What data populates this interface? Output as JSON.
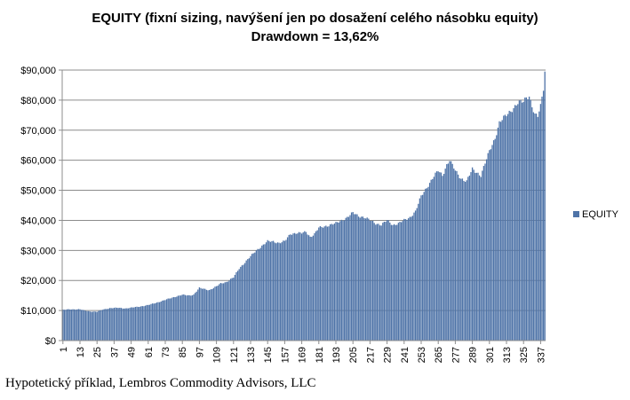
{
  "chart_data": {
    "type": "bar",
    "title": "EQUITY (fixní sizing, navýšení jen po dosažení celého násobku equity)",
    "subtitle": "Drawdown = 13,62%",
    "xlabel": "",
    "ylabel": "",
    "ylim": [
      0,
      90000
    ],
    "yticks": [
      "$0",
      "$10,000",
      "$20,000",
      "$30,000",
      "$40,000",
      "$50,000",
      "$60,000",
      "$70,000",
      "$80,000",
      "$90,000"
    ],
    "ytick_values": [
      0,
      10000,
      20000,
      30000,
      40000,
      50000,
      60000,
      70000,
      80000,
      90000
    ],
    "xticks": [
      "1",
      "13",
      "25",
      "37",
      "49",
      "61",
      "73",
      "85",
      "97",
      "109",
      "121",
      "133",
      "145",
      "157",
      "169",
      "181",
      "193",
      "205",
      "217",
      "229",
      "241",
      "253",
      "265",
      "277",
      "289",
      "301",
      "313",
      "325",
      "337"
    ],
    "xtick_values": [
      1,
      13,
      25,
      37,
      49,
      61,
      73,
      85,
      97,
      109,
      121,
      133,
      145,
      157,
      169,
      181,
      193,
      205,
      217,
      229,
      241,
      253,
      265,
      277,
      289,
      301,
      313,
      325,
      337
    ],
    "x_count": 340,
    "legend_position": "right",
    "grid": "horizontal",
    "bar_color": "#4f74a8",
    "series": [
      {
        "name": "EQUITY",
        "anchors": [
          [
            1,
            10200
          ],
          [
            6,
            10400
          ],
          [
            13,
            10400
          ],
          [
            16,
            10000
          ],
          [
            20,
            9700
          ],
          [
            25,
            9600
          ],
          [
            29,
            10300
          ],
          [
            34,
            10800
          ],
          [
            40,
            10900
          ],
          [
            45,
            10700
          ],
          [
            50,
            11000
          ],
          [
            56,
            11400
          ],
          [
            61,
            11800
          ],
          [
            66,
            12500
          ],
          [
            71,
            13200
          ],
          [
            76,
            14000
          ],
          [
            80,
            14600
          ],
          [
            85,
            15200
          ],
          [
            90,
            15000
          ],
          [
            93,
            15300
          ],
          [
            97,
            17500
          ],
          [
            100,
            17200
          ],
          [
            104,
            16800
          ],
          [
            109,
            18000
          ],
          [
            112,
            19000
          ],
          [
            116,
            19500
          ],
          [
            121,
            21000
          ],
          [
            125,
            24000
          ],
          [
            129,
            26000
          ],
          [
            133,
            28000
          ],
          [
            137,
            30000
          ],
          [
            141,
            31500
          ],
          [
            145,
            33000
          ],
          [
            149,
            33000
          ],
          [
            153,
            32500
          ],
          [
            157,
            33000
          ],
          [
            161,
            35500
          ],
          [
            165,
            35800
          ],
          [
            169,
            35700
          ],
          [
            172,
            36200
          ],
          [
            175,
            34500
          ],
          [
            178,
            35500
          ],
          [
            181,
            37500
          ],
          [
            185,
            38000
          ],
          [
            189,
            38500
          ],
          [
            193,
            39000
          ],
          [
            197,
            40000
          ],
          [
            201,
            41000
          ],
          [
            205,
            42500
          ],
          [
            209,
            41500
          ],
          [
            213,
            41000
          ],
          [
            217,
            40000
          ],
          [
            221,
            39000
          ],
          [
            225,
            38500
          ],
          [
            229,
            40000
          ],
          [
            233,
            38500
          ],
          [
            237,
            39000
          ],
          [
            241,
            40000
          ],
          [
            245,
            41000
          ],
          [
            249,
            43000
          ],
          [
            253,
            48000
          ],
          [
            257,
            51000
          ],
          [
            261,
            54000
          ],
          [
            265,
            56500
          ],
          [
            268,
            55000
          ],
          [
            271,
            58500
          ],
          [
            273,
            60000
          ],
          [
            277,
            56500
          ],
          [
            281,
            54000
          ],
          [
            285,
            53000
          ],
          [
            289,
            57000
          ],
          [
            292,
            56000
          ],
          [
            295,
            55000
          ],
          [
            298,
            59000
          ],
          [
            301,
            63000
          ],
          [
            305,
            67500
          ],
          [
            308,
            72500
          ],
          [
            313,
            75000
          ],
          [
            317,
            77000
          ],
          [
            321,
            79000
          ],
          [
            325,
            79500
          ],
          [
            327,
            81000
          ],
          [
            329,
            81500
          ],
          [
            331,
            78000
          ],
          [
            333,
            75000
          ],
          [
            335,
            74500
          ],
          [
            337,
            78000
          ],
          [
            339,
            84000
          ],
          [
            340,
            89500
          ]
        ]
      }
    ]
  },
  "caption": "Hypotetický příklad, Lembros Commodity Advisors, LLC"
}
